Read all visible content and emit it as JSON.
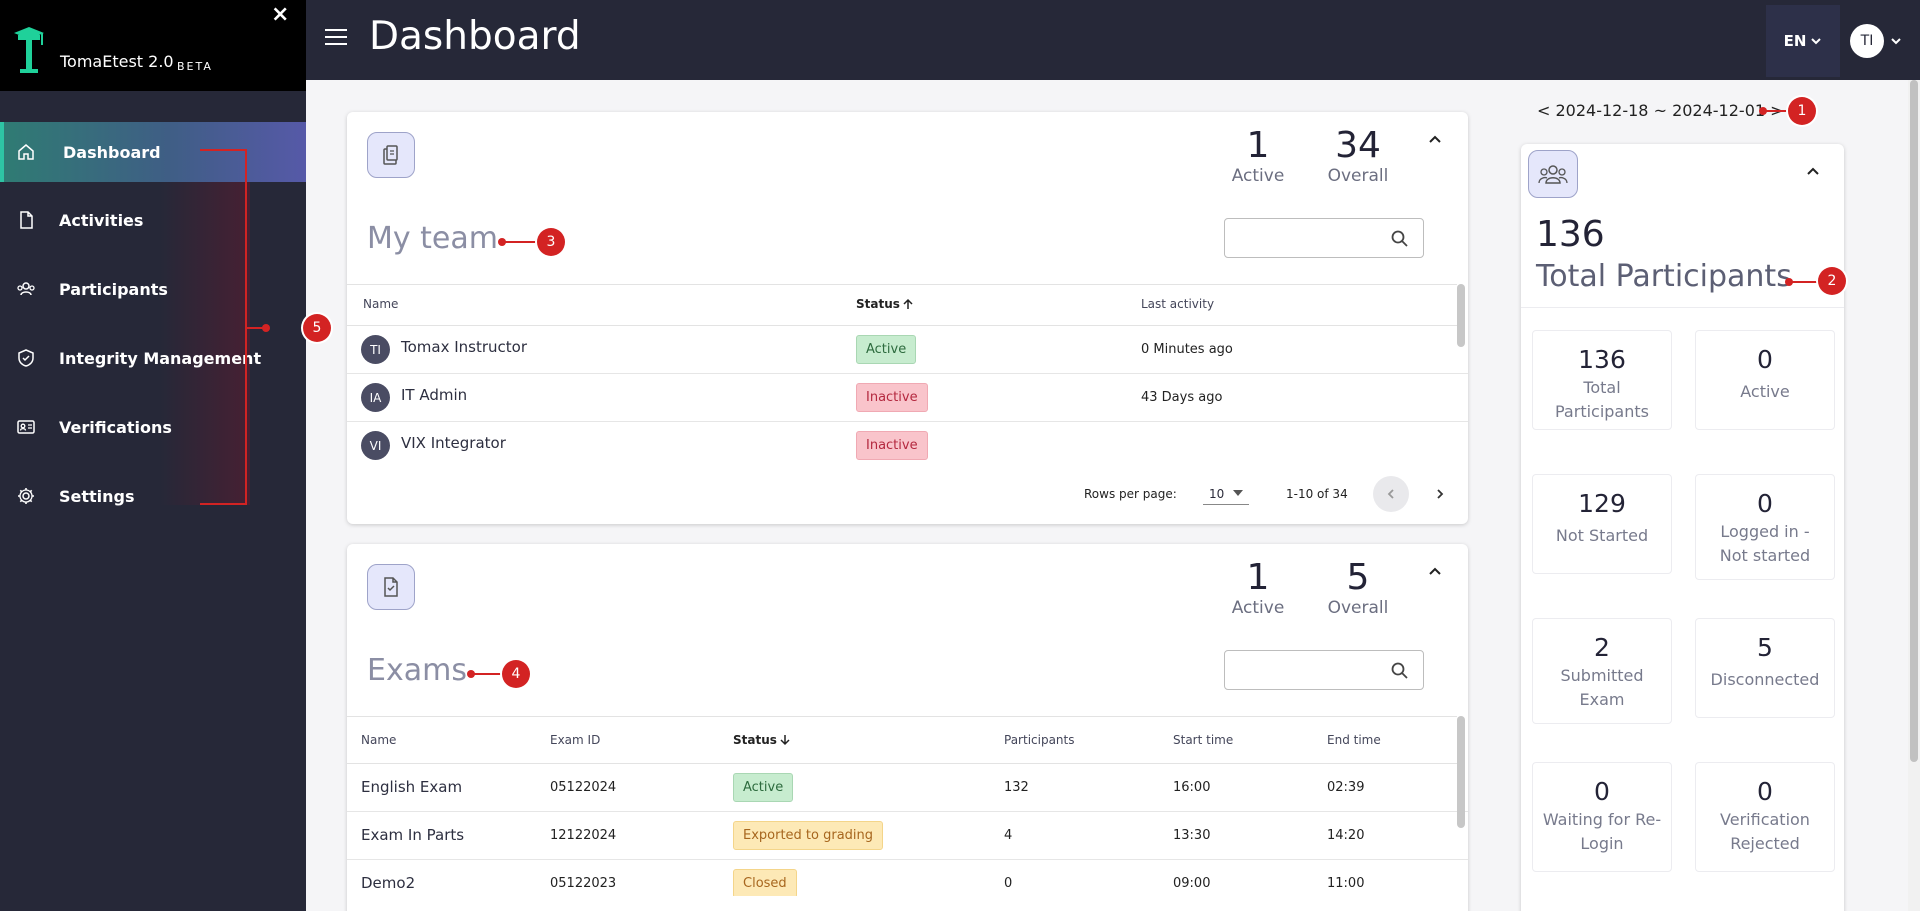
{
  "app": {
    "name": "TomaEtest 2.0",
    "beta": "BETA",
    "close": "×"
  },
  "sidebar": {
    "items": [
      {
        "label": "Dashboard",
        "icon": "home-icon"
      },
      {
        "label": "Activities",
        "icon": "file-icon"
      },
      {
        "label": "Participants",
        "icon": "users-icon"
      },
      {
        "label": "Integrity Management",
        "icon": "shield-check-icon"
      },
      {
        "label": "Verifications",
        "icon": "id-card-icon"
      },
      {
        "label": "Settings",
        "icon": "gear-icon"
      }
    ]
  },
  "header": {
    "title": "Dashboard",
    "lang": "EN",
    "user_initials": "TI"
  },
  "date_range": {
    "prev": "<",
    "text": "2024-12-18 ~ 2024-12-01",
    "next": ">"
  },
  "my_team": {
    "title": "My team",
    "active_count": "1",
    "active_label": "Active",
    "overall_count": "34",
    "overall_label": "Overall",
    "search_placeholder": "",
    "columns": {
      "name": "Name",
      "status": "Status",
      "last_activity": "Last activity"
    },
    "rows": [
      {
        "initials": "TI",
        "name": "Tomax Instructor",
        "status": "Active",
        "last_activity": "0 Minutes ago"
      },
      {
        "initials": "IA",
        "name": "IT Admin",
        "status": "Inactive",
        "last_activity": "43 Days ago"
      },
      {
        "initials": "VI",
        "name": "VIX Integrator",
        "status": "Inactive",
        "last_activity": ""
      }
    ],
    "pagination": {
      "rows_label": "Rows per page:",
      "rows_value": "10",
      "range": "1-10 of 34"
    }
  },
  "exams": {
    "title": "Exams",
    "active_count": "1",
    "active_label": "Active",
    "overall_count": "5",
    "overall_label": "Overall",
    "search_placeholder": "",
    "columns": {
      "name": "Name",
      "exam_id": "Exam ID",
      "status": "Status",
      "participants": "Participants",
      "start_time": "Start time",
      "end_time": "End time"
    },
    "rows": [
      {
        "name": "English Exam",
        "exam_id": "05122024",
        "status": "Active",
        "participants": "132",
        "start_time": "16:00",
        "end_time": "02:39"
      },
      {
        "name": "Exam In Parts",
        "exam_id": "12122024",
        "status": "Exported to grading",
        "participants": "4",
        "start_time": "13:30",
        "end_time": "14:20"
      },
      {
        "name": "Demo2",
        "exam_id": "05122023",
        "status": "Closed",
        "participants": "0",
        "start_time": "09:00",
        "end_time": "11:00"
      }
    ]
  },
  "participants": {
    "total": "136",
    "total_label": "Total Participants",
    "stats": [
      {
        "value": "136",
        "label": "Total Participants"
      },
      {
        "value": "0",
        "label": "Active"
      },
      {
        "value": "129",
        "label": "Not Started"
      },
      {
        "value": "0",
        "label": "Logged in - Not started"
      },
      {
        "value": "2",
        "label": "Submitted Exam"
      },
      {
        "value": "5",
        "label": "Disconnected"
      },
      {
        "value": "0",
        "label": "Waiting for Re-Login"
      },
      {
        "value": "0",
        "label": "Verification Rejected"
      }
    ]
  },
  "annotations": [
    "1",
    "2",
    "3",
    "4",
    "5"
  ],
  "colors": {
    "sidebar": "#262838",
    "accent": "#2ec4a4",
    "annotation": "#d32323"
  }
}
